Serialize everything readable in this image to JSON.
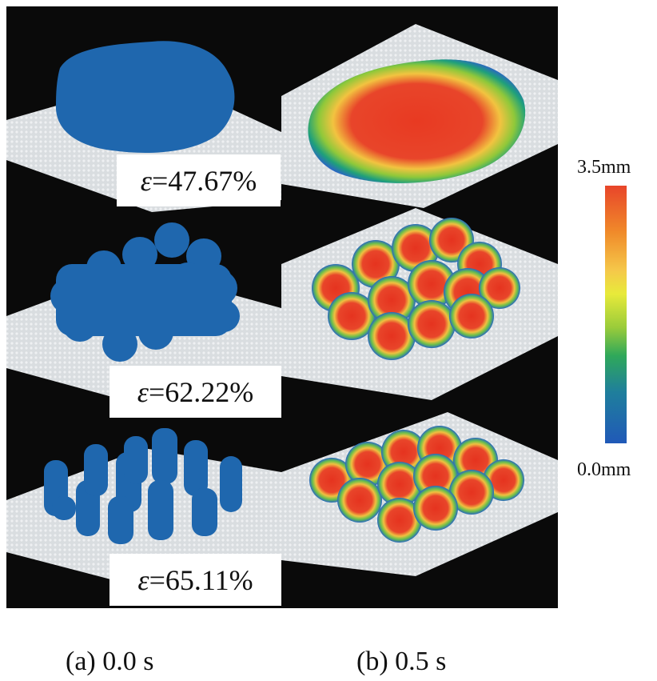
{
  "panels": {
    "left": [
      {
        "porosity": "=47.67%"
      },
      {
        "porosity": "=62.22%"
      },
      {
        "porosity": "=65.11%"
      }
    ],
    "epsilon_symbol": "ε"
  },
  "captions": {
    "a": "(a) 0.0 s",
    "b": "(b) 0.5 s"
  },
  "colorbar": {
    "max_label": "3.5mm",
    "min_label": "0.0mm",
    "colors": [
      "#e8452a",
      "#f5c84a",
      "#e8ea3a",
      "#2fa85a",
      "#2059b8"
    ]
  }
}
